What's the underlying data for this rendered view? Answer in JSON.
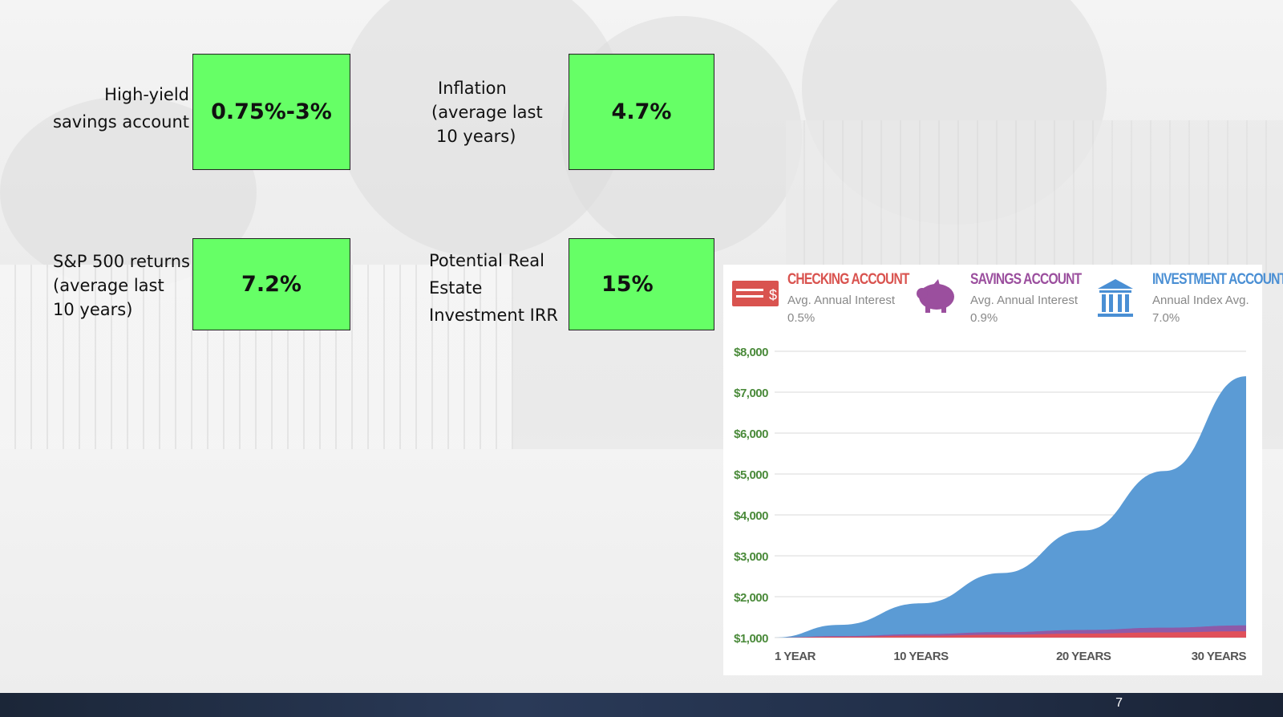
{
  "metrics": [
    {
      "label": "High-yield savings account",
      "line1": "High-yield",
      "line2": "savings account",
      "value": "0.75%-3%"
    },
    {
      "label": "Inflation (average last 10 years)",
      "line1": "Inflation",
      "line2": "(average last",
      "line3": "10 years)",
      "value": "4.7%"
    },
    {
      "label": "S&P 500 returns (average last 10 years)",
      "line1": "S&P 500 returns",
      "line2": "(average last",
      "line3": "10 years)",
      "value": "7.2%"
    },
    {
      "label": "Potential Real Estate Investment IRR",
      "line1": "Potential Real",
      "line2": "Estate",
      "line3": "Investment IRR",
      "value": "15%"
    }
  ],
  "legend": [
    {
      "title": "CHECKING ACCOUNT",
      "subtitle": "Avg. Annual Interest",
      "value": "0.5%",
      "color": "#d9534f",
      "icon": "card-icon"
    },
    {
      "title": "SAVINGS ACCOUNT",
      "subtitle": "Avg. Annual Interest",
      "value": "0.9%",
      "color": "#9b4f9e",
      "icon": "piggy-bank-icon"
    },
    {
      "title": "INVESTMENT ACCOUNT",
      "subtitle": "Annual Index Avg.",
      "value": "7.0%",
      "color": "#4a8fd4",
      "icon": "bank-icon"
    }
  ],
  "chart_data": {
    "type": "area",
    "x": [
      1,
      5,
      10,
      15,
      20,
      25,
      30
    ],
    "x_tick_values": [
      1,
      10,
      20,
      30
    ],
    "x_tick_labels": [
      "1 YEAR",
      "10 YEARS",
      "20 YEARS",
      "30 YEARS"
    ],
    "y_tick_values": [
      1000,
      2000,
      3000,
      4000,
      5000,
      6000,
      7000,
      8000
    ],
    "y_tick_labels": [
      "$1,000",
      "$2,000",
      "$3,000",
      "$4,000",
      "$5,000",
      "$6,000",
      "$7,000",
      "$8,000"
    ],
    "ylim": [
      1000,
      8000
    ],
    "xlim": [
      1,
      30
    ],
    "grid": true,
    "series": [
      {
        "name": "INVESTMENT ACCOUNT",
        "color": "#5b9bd5",
        "values": [
          1000,
          1311,
          1838,
          2579,
          3617,
          5073,
          7389
        ]
      },
      {
        "name": "SAVINGS ACCOUNT",
        "color": "#8e5aa8",
        "values": [
          1000,
          1037,
          1084,
          1134,
          1187,
          1242,
          1299
        ]
      },
      {
        "name": "CHECKING ACCOUNT",
        "color": "#e0505a",
        "values": [
          1000,
          1020,
          1046,
          1072,
          1099,
          1127,
          1155
        ]
      }
    ]
  },
  "footer": {
    "page_number": "7"
  }
}
